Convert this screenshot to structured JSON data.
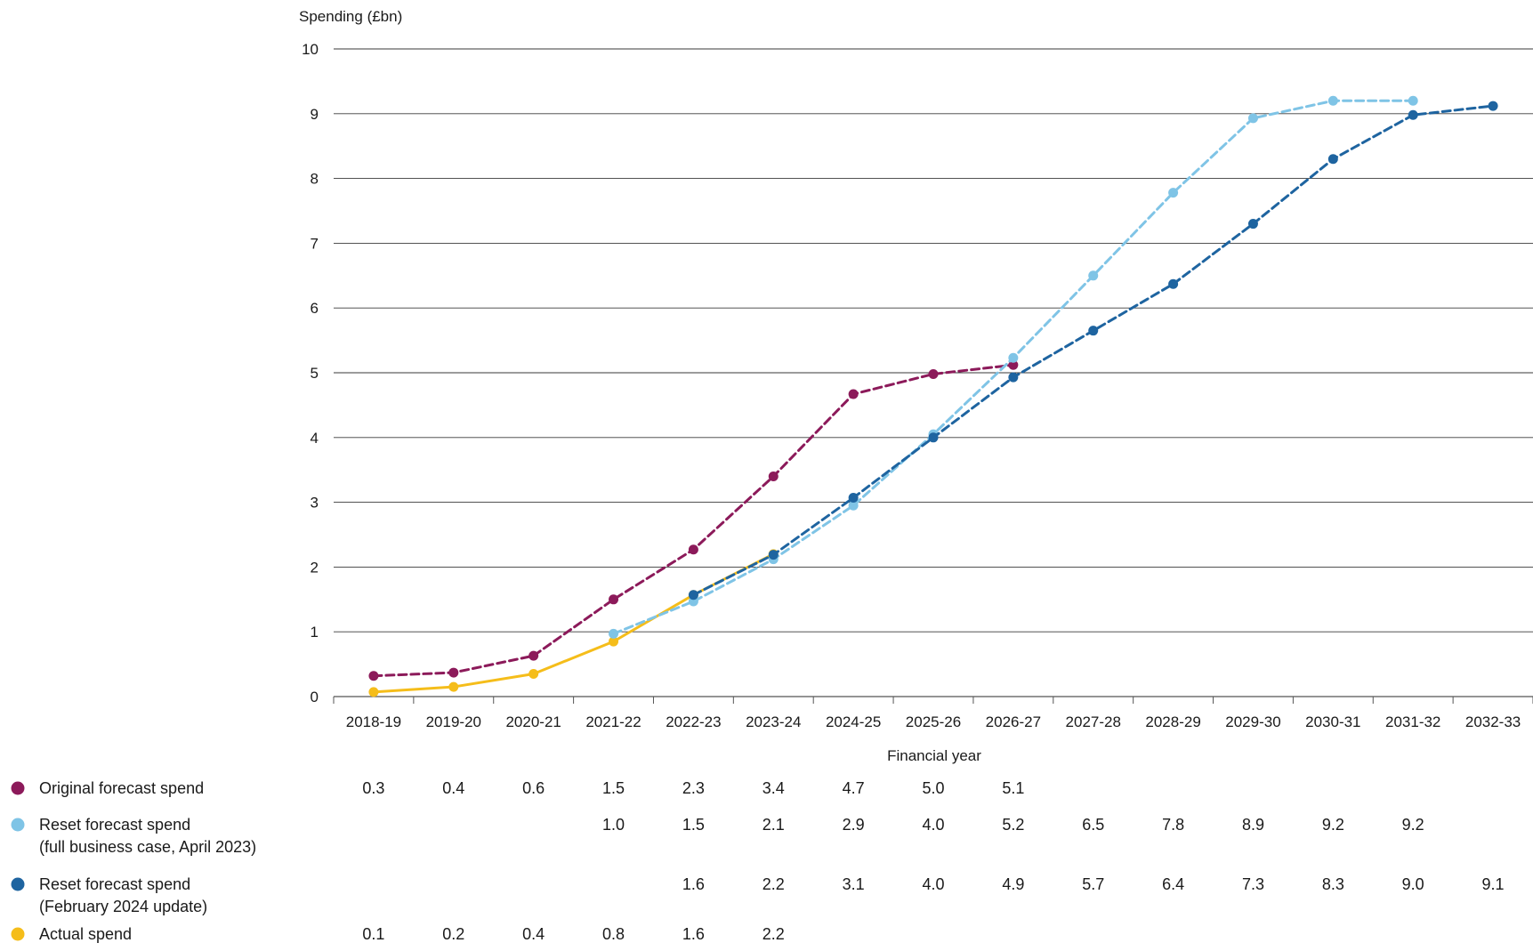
{
  "chart_data": {
    "type": "line",
    "ylabel": "Spending (£bn)",
    "xlabel": "Financial year",
    "ylim": [
      0,
      10
    ],
    "yticks": [
      0,
      1,
      2,
      3,
      4,
      5,
      6,
      7,
      8,
      9,
      10
    ],
    "grid": "horizontal",
    "categories": [
      "2018-19",
      "2019-20",
      "2020-21",
      "2021-22",
      "2022-23",
      "2023-24",
      "2024-25",
      "2025-26",
      "2026-27",
      "2027-28",
      "2028-29",
      "2029-30",
      "2030-31",
      "2031-32",
      "2032-33"
    ],
    "series": [
      {
        "name": "Original forecast spend",
        "color": "#8C1A5A",
        "style": "dashed",
        "values": [
          0.32,
          0.37,
          0.63,
          1.5,
          2.27,
          3.4,
          4.67,
          4.98,
          5.12,
          null,
          null,
          null,
          null,
          null,
          null
        ],
        "table_values": [
          "0.3",
          "0.4",
          "0.6",
          "1.5",
          "2.3",
          "3.4",
          "4.7",
          "5.0",
          "5.1",
          "",
          "",
          "",
          "",
          "",
          ""
        ]
      },
      {
        "name": "Reset forecast spend",
        "name_line2": "(full business case, April 2023)",
        "color": "#7FC4E6",
        "style": "dashed",
        "values": [
          null,
          null,
          null,
          0.97,
          1.47,
          2.12,
          2.95,
          4.05,
          5.23,
          6.5,
          7.78,
          8.93,
          9.2,
          9.2,
          null
        ],
        "table_values": [
          "",
          "",
          "",
          "1.0",
          "1.5",
          "2.1",
          "2.9",
          "4.0",
          "5.2",
          "6.5",
          "7.8",
          "8.9",
          "9.2",
          "9.2",
          ""
        ]
      },
      {
        "name": "Reset forecast spend",
        "name_line2": "(February 2024 update)",
        "color": "#1E64A0",
        "style": "dashed",
        "values": [
          null,
          null,
          null,
          null,
          1.57,
          2.19,
          3.07,
          4.0,
          4.93,
          5.65,
          6.37,
          7.3,
          8.3,
          8.98,
          9.12
        ],
        "table_values": [
          "",
          "",
          "",
          "",
          "1.6",
          "2.2",
          "3.1",
          "4.0",
          "4.9",
          "5.7",
          "6.4",
          "7.3",
          "8.3",
          "9.0",
          "9.1"
        ]
      },
      {
        "name": "Actual spend",
        "color": "#F5BD1A",
        "style": "solid",
        "values": [
          0.07,
          0.15,
          0.35,
          0.85,
          1.57,
          2.2,
          null,
          null,
          null,
          null,
          null,
          null,
          null,
          null,
          null
        ],
        "table_values": [
          "0.1",
          "0.2",
          "0.4",
          "0.8",
          "1.6",
          "2.2",
          "",
          "",
          "",
          "",
          "",
          "",
          "",
          "",
          ""
        ]
      }
    ]
  }
}
